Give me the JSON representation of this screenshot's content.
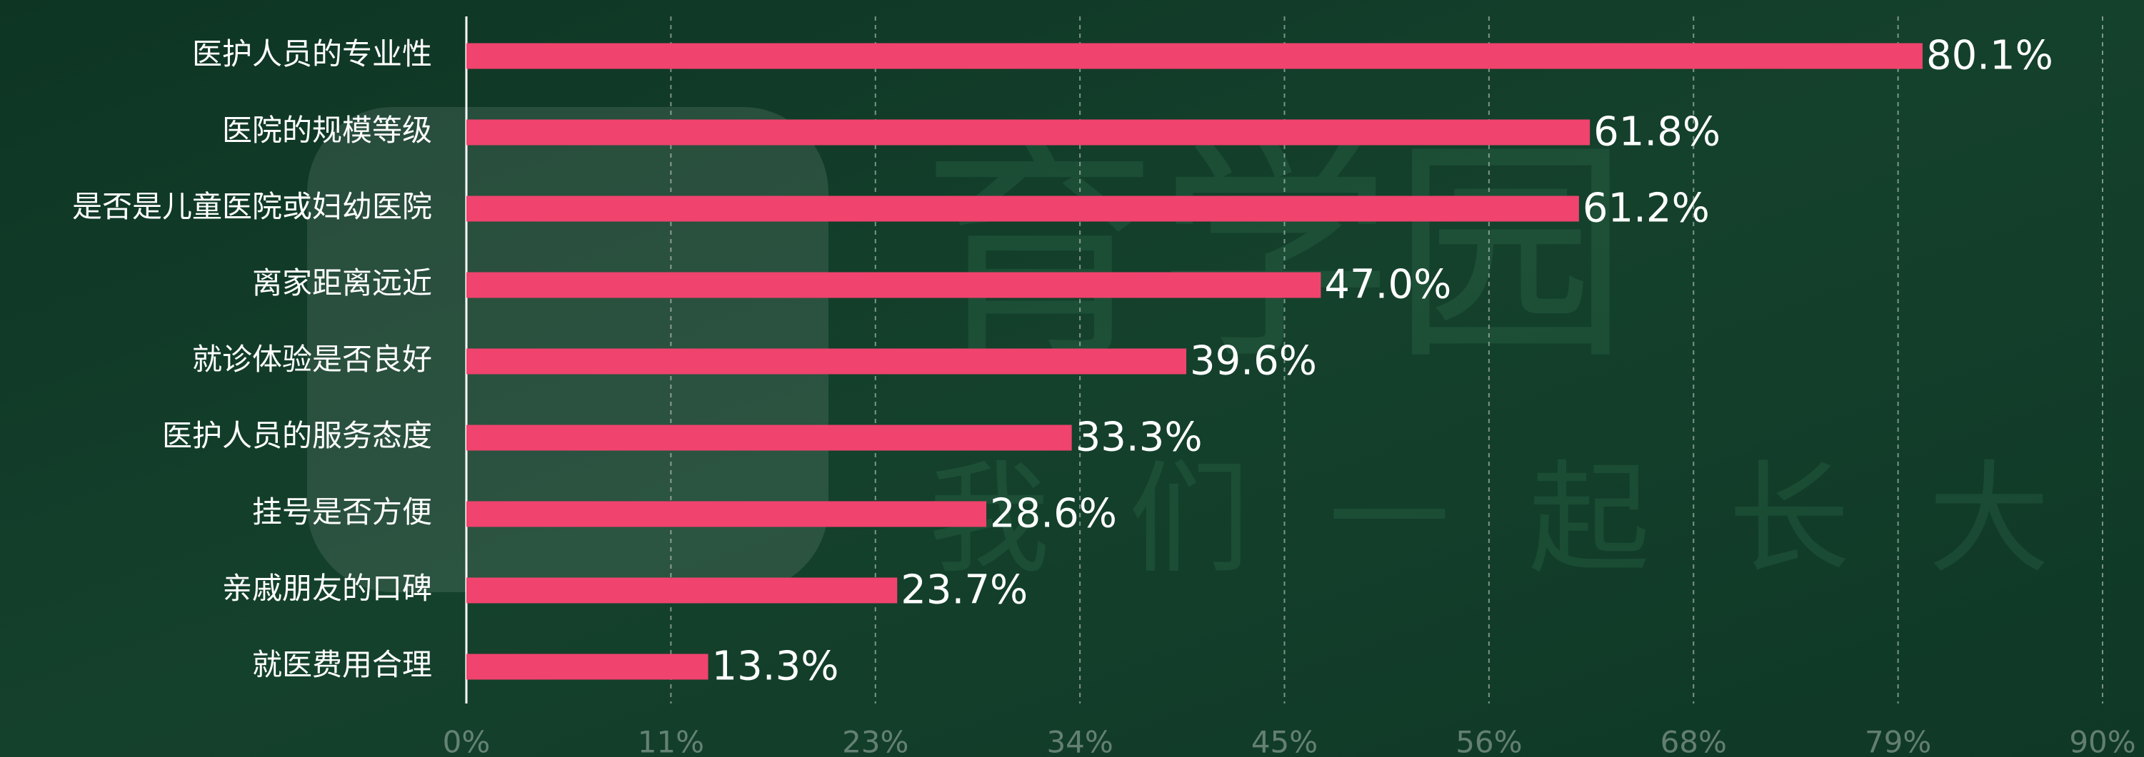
{
  "chart_data": {
    "type": "bar",
    "orientation": "horizontal",
    "categories": [
      "医护人员的专业性",
      "医院的规模等级",
      "是否是儿童医院或妇幼医院",
      "离家距离远近",
      "就诊体验是否良好",
      "医护人员的服务态度",
      "挂号是否方便",
      "亲戚朋友的口碑",
      "就医费用合理"
    ],
    "values": [
      80.1,
      61.8,
      61.2,
      47.0,
      39.6,
      33.3,
      28.6,
      23.7,
      13.3
    ],
    "value_labels": [
      "80.1%",
      "61.8%",
      "61.2%",
      "47.0%",
      "39.6%",
      "33.3%",
      "28.6%",
      "23.7%",
      "13.3%"
    ],
    "color": "#f0436e",
    "xlim": [
      0,
      90
    ],
    "xticks": [
      {
        "value": 0,
        "label": "0%"
      },
      {
        "value": 11.25,
        "label": "11%"
      },
      {
        "value": 22.5,
        "label": "23%"
      },
      {
        "value": 33.75,
        "label": "34%"
      },
      {
        "value": 45,
        "label": "45%"
      },
      {
        "value": 56.25,
        "label": "56%"
      },
      {
        "value": 67.5,
        "label": "68%"
      },
      {
        "value": 78.75,
        "label": "79%"
      },
      {
        "value": 90,
        "label": "90%"
      }
    ],
    "grid": true
  },
  "watermark": {
    "name": "育学园",
    "slogan": "我们一起长大"
  }
}
